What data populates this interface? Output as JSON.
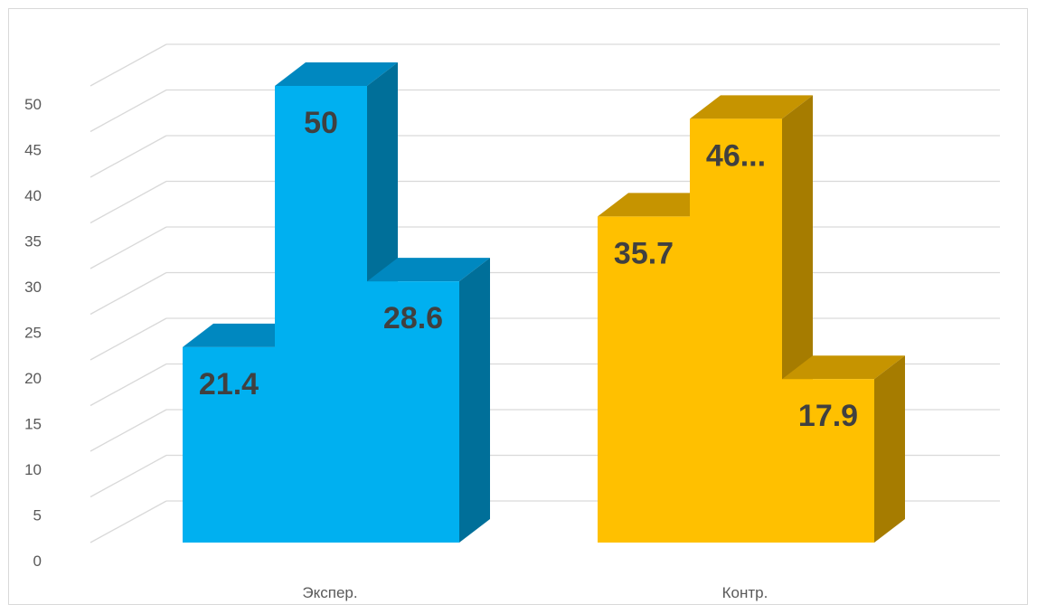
{
  "chart_data": {
    "type": "bar",
    "subtype": "3d-clustered-column",
    "categories": [
      "Экспер.",
      "Контр."
    ],
    "series": [
      {
        "values": [
          21.4,
          35.7
        ]
      },
      {
        "values": [
          50,
          46.4
        ]
      },
      {
        "values": [
          28.6,
          17.9
        ]
      }
    ],
    "data_labels": [
      [
        "21.4",
        "50",
        "28.6"
      ],
      [
        "35.7",
        "46...",
        "17.9"
      ]
    ],
    "category_colors": [
      {
        "front": "#00b0f0",
        "side": "#006f99",
        "top": "#0088c0"
      },
      {
        "front": "#ffc000",
        "side": "#a67c00",
        "top": "#c69400"
      }
    ],
    "ylim": [
      0,
      50
    ],
    "yticks": [
      0,
      5,
      10,
      15,
      20,
      25,
      30,
      35,
      40,
      45,
      50
    ],
    "grid": true,
    "legend": "none",
    "title": "",
    "xlabel": "",
    "ylabel": ""
  }
}
